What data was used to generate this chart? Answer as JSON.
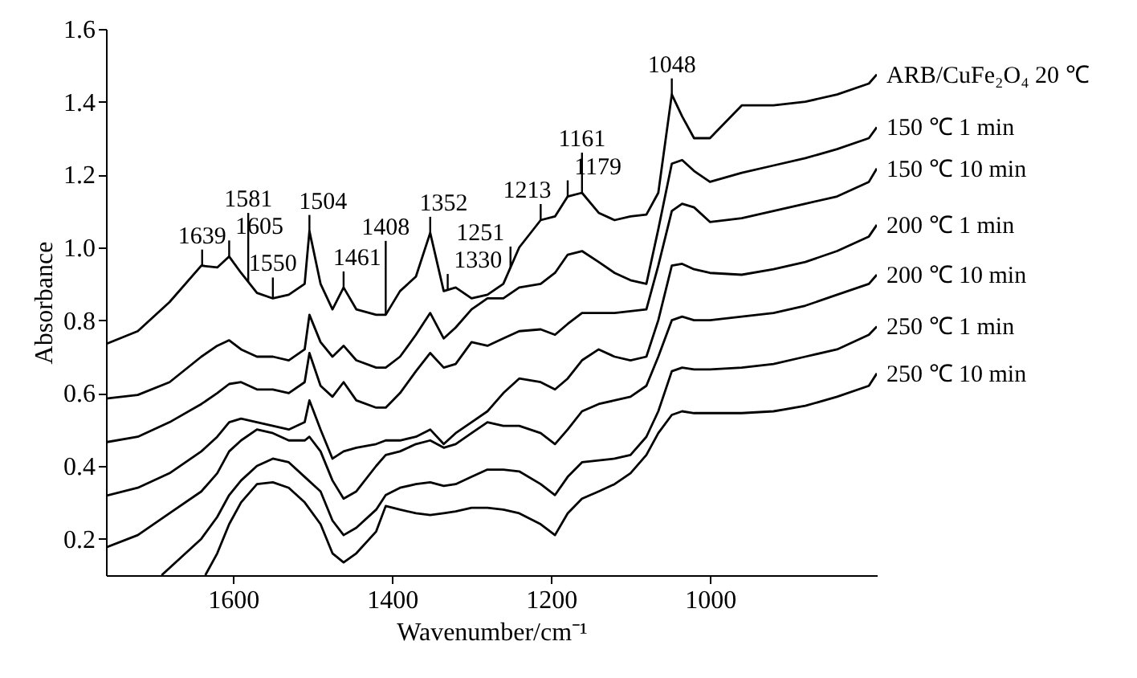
{
  "chart_data": {
    "type": "line",
    "xlabel": "Wavenumber/cm⁻¹",
    "ylabel": "Absorbance",
    "xlim": [
      1760,
      790
    ],
    "ylim": [
      0.1,
      1.6
    ],
    "xticks": [
      1600,
      1400,
      1200,
      1000
    ],
    "yticks": [
      {
        "value": 0.2,
        "label": "0.2"
      },
      {
        "value": 0.4,
        "label": "0.4"
      },
      {
        "value": 0.6,
        "label": "0.6"
      },
      {
        "value": 0.8,
        "label": "0.8"
      },
      {
        "value": 1.0,
        "label": "1.0"
      },
      {
        "value": 1.2,
        "label": "1.2"
      },
      {
        "value": 1.4,
        "label": "1.4"
      },
      {
        "value": 1.6,
        "label": "1.6"
      }
    ],
    "grid": false,
    "marker": "none",
    "line_style": "solid",
    "series": [
      {
        "name": "ARB/CuFe₂O₄ 20 ℃",
        "color": "#000000",
        "x": [
          1760,
          1720,
          1680,
          1640,
          1620,
          1605,
          1590,
          1570,
          1550,
          1530,
          1510,
          1504,
          1490,
          1475,
          1461,
          1445,
          1420,
          1408,
          1390,
          1370,
          1352,
          1335,
          1320,
          1300,
          1280,
          1260,
          1240,
          1213,
          1195,
          1179,
          1161,
          1140,
          1120,
          1100,
          1080,
          1065,
          1048,
          1035,
          1020,
          1000,
          960,
          920,
          880,
          840,
          800,
          790
        ],
        "values": [
          0.735,
          0.77,
          0.85,
          0.95,
          0.945,
          0.975,
          0.93,
          0.875,
          0.86,
          0.87,
          0.9,
          1.045,
          0.9,
          0.83,
          0.89,
          0.83,
          0.815,
          0.815,
          0.88,
          0.92,
          1.04,
          0.88,
          0.89,
          0.86,
          0.87,
          0.9,
          1.0,
          1.075,
          1.085,
          1.14,
          1.15,
          1.095,
          1.075,
          1.085,
          1.09,
          1.15,
          1.42,
          1.36,
          1.3,
          1.3,
          1.39,
          1.39,
          1.4,
          1.42,
          1.45,
          1.475
        ]
      },
      {
        "name": "150 ℃ 1 min",
        "color": "#000000",
        "x": [
          1760,
          1720,
          1680,
          1640,
          1620,
          1605,
          1590,
          1570,
          1550,
          1530,
          1510,
          1504,
          1490,
          1475,
          1461,
          1445,
          1420,
          1408,
          1390,
          1370,
          1352,
          1335,
          1320,
          1300,
          1280,
          1260,
          1240,
          1213,
          1195,
          1179,
          1161,
          1140,
          1120,
          1100,
          1080,
          1065,
          1048,
          1035,
          1020,
          1000,
          960,
          920,
          880,
          840,
          800,
          790
        ],
        "values": [
          0.585,
          0.595,
          0.63,
          0.7,
          0.73,
          0.745,
          0.72,
          0.7,
          0.7,
          0.69,
          0.72,
          0.815,
          0.74,
          0.7,
          0.73,
          0.69,
          0.67,
          0.67,
          0.7,
          0.76,
          0.82,
          0.75,
          0.78,
          0.83,
          0.86,
          0.86,
          0.89,
          0.9,
          0.93,
          0.98,
          0.99,
          0.96,
          0.93,
          0.91,
          0.9,
          1.05,
          1.23,
          1.24,
          1.21,
          1.18,
          1.205,
          1.225,
          1.245,
          1.27,
          1.3,
          1.33
        ]
      },
      {
        "name": "150 ℃ 10 min",
        "color": "#000000",
        "x": [
          1760,
          1720,
          1680,
          1640,
          1620,
          1605,
          1590,
          1570,
          1550,
          1530,
          1510,
          1504,
          1490,
          1475,
          1461,
          1445,
          1420,
          1408,
          1390,
          1370,
          1352,
          1335,
          1320,
          1300,
          1280,
          1260,
          1240,
          1213,
          1195,
          1179,
          1161,
          1140,
          1120,
          1100,
          1080,
          1065,
          1048,
          1035,
          1020,
          1000,
          960,
          920,
          880,
          840,
          800,
          790
        ],
        "values": [
          0.465,
          0.48,
          0.52,
          0.57,
          0.6,
          0.625,
          0.63,
          0.61,
          0.61,
          0.6,
          0.63,
          0.71,
          0.62,
          0.59,
          0.63,
          0.58,
          0.56,
          0.56,
          0.6,
          0.66,
          0.71,
          0.67,
          0.68,
          0.74,
          0.73,
          0.75,
          0.77,
          0.775,
          0.76,
          0.79,
          0.82,
          0.82,
          0.82,
          0.825,
          0.83,
          0.95,
          1.1,
          1.12,
          1.11,
          1.07,
          1.08,
          1.1,
          1.12,
          1.14,
          1.18,
          1.217
        ]
      },
      {
        "name": "200 ℃ 1 min",
        "color": "#000000",
        "x": [
          1760,
          1720,
          1680,
          1640,
          1620,
          1605,
          1590,
          1570,
          1550,
          1530,
          1510,
          1504,
          1490,
          1475,
          1461,
          1445,
          1420,
          1408,
          1390,
          1370,
          1352,
          1335,
          1320,
          1300,
          1280,
          1260,
          1240,
          1213,
          1195,
          1179,
          1161,
          1140,
          1120,
          1100,
          1080,
          1065,
          1048,
          1035,
          1020,
          1000,
          960,
          920,
          880,
          840,
          800,
          790
        ],
        "values": [
          0.318,
          0.34,
          0.38,
          0.44,
          0.48,
          0.52,
          0.53,
          0.52,
          0.51,
          0.5,
          0.52,
          0.58,
          0.5,
          0.42,
          0.44,
          0.45,
          0.46,
          0.47,
          0.47,
          0.48,
          0.5,
          0.46,
          0.49,
          0.52,
          0.55,
          0.6,
          0.64,
          0.63,
          0.61,
          0.64,
          0.69,
          0.72,
          0.7,
          0.69,
          0.7,
          0.8,
          0.95,
          0.955,
          0.94,
          0.93,
          0.925,
          0.94,
          0.96,
          0.99,
          1.03,
          1.062
        ]
      },
      {
        "name": "200 ℃ 10 min",
        "color": "#000000",
        "x": [
          1760,
          1720,
          1680,
          1640,
          1620,
          1605,
          1590,
          1570,
          1550,
          1530,
          1510,
          1504,
          1490,
          1475,
          1461,
          1445,
          1420,
          1408,
          1390,
          1370,
          1352,
          1335,
          1320,
          1300,
          1280,
          1260,
          1240,
          1213,
          1195,
          1179,
          1161,
          1140,
          1120,
          1100,
          1080,
          1065,
          1048,
          1035,
          1020,
          1000,
          960,
          920,
          880,
          840,
          800,
          790
        ],
        "values": [
          0.176,
          0.21,
          0.27,
          0.33,
          0.38,
          0.44,
          0.47,
          0.5,
          0.49,
          0.47,
          0.47,
          0.48,
          0.44,
          0.36,
          0.31,
          0.33,
          0.4,
          0.43,
          0.44,
          0.46,
          0.47,
          0.45,
          0.46,
          0.49,
          0.52,
          0.51,
          0.51,
          0.49,
          0.46,
          0.5,
          0.55,
          0.57,
          0.58,
          0.59,
          0.62,
          0.7,
          0.8,
          0.81,
          0.8,
          0.8,
          0.81,
          0.82,
          0.84,
          0.87,
          0.9,
          0.925
        ]
      },
      {
        "name": "250 ℃ 1 min",
        "color": "#000000",
        "x": [
          1690,
          1680,
          1640,
          1620,
          1605,
          1590,
          1570,
          1550,
          1530,
          1510,
          1490,
          1475,
          1461,
          1445,
          1420,
          1408,
          1390,
          1370,
          1352,
          1335,
          1320,
          1300,
          1280,
          1260,
          1240,
          1213,
          1195,
          1179,
          1161,
          1140,
          1120,
          1100,
          1080,
          1065,
          1048,
          1035,
          1020,
          1000,
          960,
          920,
          880,
          840,
          800,
          790
        ],
        "values": [
          0.1,
          0.12,
          0.2,
          0.26,
          0.32,
          0.36,
          0.4,
          0.42,
          0.41,
          0.37,
          0.33,
          0.25,
          0.21,
          0.23,
          0.28,
          0.32,
          0.34,
          0.35,
          0.355,
          0.345,
          0.35,
          0.37,
          0.39,
          0.39,
          0.385,
          0.35,
          0.32,
          0.37,
          0.41,
          0.415,
          0.42,
          0.43,
          0.48,
          0.55,
          0.66,
          0.67,
          0.665,
          0.665,
          0.67,
          0.68,
          0.7,
          0.72,
          0.76,
          0.783
        ]
      },
      {
        "name": "250 ℃ 10 min",
        "color": "#000000",
        "x": [
          1635,
          1620,
          1605,
          1590,
          1570,
          1550,
          1530,
          1510,
          1490,
          1475,
          1461,
          1445,
          1420,
          1408,
          1390,
          1370,
          1352,
          1335,
          1320,
          1300,
          1280,
          1260,
          1240,
          1213,
          1195,
          1179,
          1161,
          1140,
          1120,
          1100,
          1080,
          1065,
          1048,
          1035,
          1020,
          1000,
          960,
          920,
          880,
          840,
          800,
          790
        ],
        "values": [
          0.1,
          0.16,
          0.24,
          0.3,
          0.35,
          0.355,
          0.34,
          0.3,
          0.24,
          0.16,
          0.135,
          0.16,
          0.22,
          0.29,
          0.28,
          0.27,
          0.265,
          0.27,
          0.275,
          0.285,
          0.285,
          0.28,
          0.27,
          0.24,
          0.21,
          0.27,
          0.31,
          0.33,
          0.35,
          0.38,
          0.43,
          0.49,
          0.54,
          0.55,
          0.545,
          0.545,
          0.545,
          0.55,
          0.565,
          0.59,
          0.62,
          0.654
        ]
      }
    ],
    "annotations": [
      {
        "text": "1639",
        "x": 1639,
        "y": 0.95
      },
      {
        "text": "1605",
        "x": 1605,
        "y": 0.975
      },
      {
        "text": "1581",
        "x": 1581,
        "y": 0.905
      },
      {
        "text": "1550",
        "x": 1550,
        "y": 0.86
      },
      {
        "text": "1504",
        "x": 1504,
        "y": 1.045
      },
      {
        "text": "1461",
        "x": 1461,
        "y": 0.89
      },
      {
        "text": "1408",
        "x": 1408,
        "y": 0.815
      },
      {
        "text": "1352",
        "x": 1352,
        "y": 1.04
      },
      {
        "text": "1330",
        "x": 1330,
        "y": 0.883
      },
      {
        "text": "1251",
        "x": 1251,
        "y": 0.945
      },
      {
        "text": "1213",
        "x": 1213,
        "y": 1.075
      },
      {
        "text": "1179",
        "x": 1179,
        "y": 1.14
      },
      {
        "text": "1161",
        "x": 1161,
        "y": 1.15
      },
      {
        "text": "1048",
        "x": 1048,
        "y": 1.42
      }
    ]
  }
}
